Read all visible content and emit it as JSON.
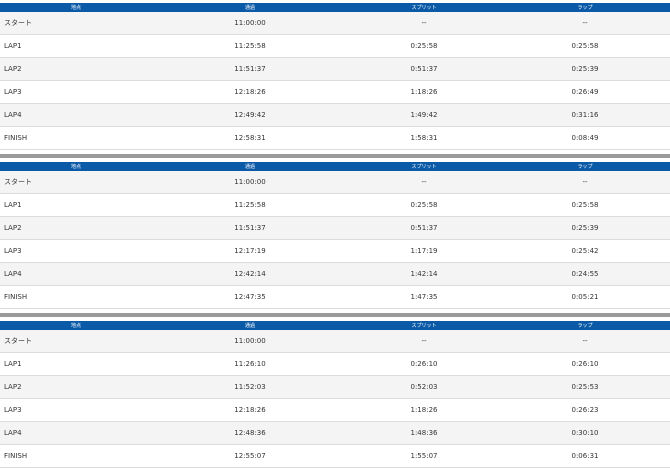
{
  "tables": [
    {
      "headers": [
        "地点",
        "通過",
        "スプリット",
        "ラップ"
      ],
      "rows": [
        [
          "スタート",
          "11:00:00",
          "--",
          "--"
        ],
        [
          "LAP1",
          "11:25:58",
          "0:25:58",
          "0:25:58"
        ],
        [
          "LAP2",
          "11:51:37",
          "0:51:37",
          "0:25:39"
        ],
        [
          "LAP3",
          "12:18:26",
          "1:18:26",
          "0:26:49"
        ],
        [
          "LAP4",
          "12:49:42",
          "1:49:42",
          "0:31:16"
        ],
        [
          "FINISH",
          "12:58:31",
          "1:58:31",
          "0:08:49"
        ]
      ]
    },
    {
      "headers": [
        "地点",
        "通過",
        "スプリット",
        "ラップ"
      ],
      "rows": [
        [
          "スタート",
          "11:00:00",
          "--",
          "--"
        ],
        [
          "LAP1",
          "11:25:58",
          "0:25:58",
          "0:25:58"
        ],
        [
          "LAP2",
          "11:51:37",
          "0:51:37",
          "0:25:39"
        ],
        [
          "LAP3",
          "12:17:19",
          "1:17:19",
          "0:25:42"
        ],
        [
          "LAP4",
          "12:42:14",
          "1:42:14",
          "0:24:55"
        ],
        [
          "FINISH",
          "12:47:35",
          "1:47:35",
          "0:05:21"
        ]
      ]
    },
    {
      "headers": [
        "地点",
        "通過",
        "スプリット",
        "ラップ"
      ],
      "rows": [
        [
          "スタート",
          "11:00:00",
          "--",
          "--"
        ],
        [
          "LAP1",
          "11:26:10",
          "0:26:10",
          "0:26:10"
        ],
        [
          "LAP2",
          "11:52:03",
          "0:52:03",
          "0:25:53"
        ],
        [
          "LAP3",
          "12:18:26",
          "1:18:26",
          "0:26:23"
        ],
        [
          "LAP4",
          "12:48:36",
          "1:48:36",
          "0:30:10"
        ],
        [
          "FINISH",
          "12:55:07",
          "1:55:07",
          "0:06:31"
        ]
      ]
    }
  ]
}
